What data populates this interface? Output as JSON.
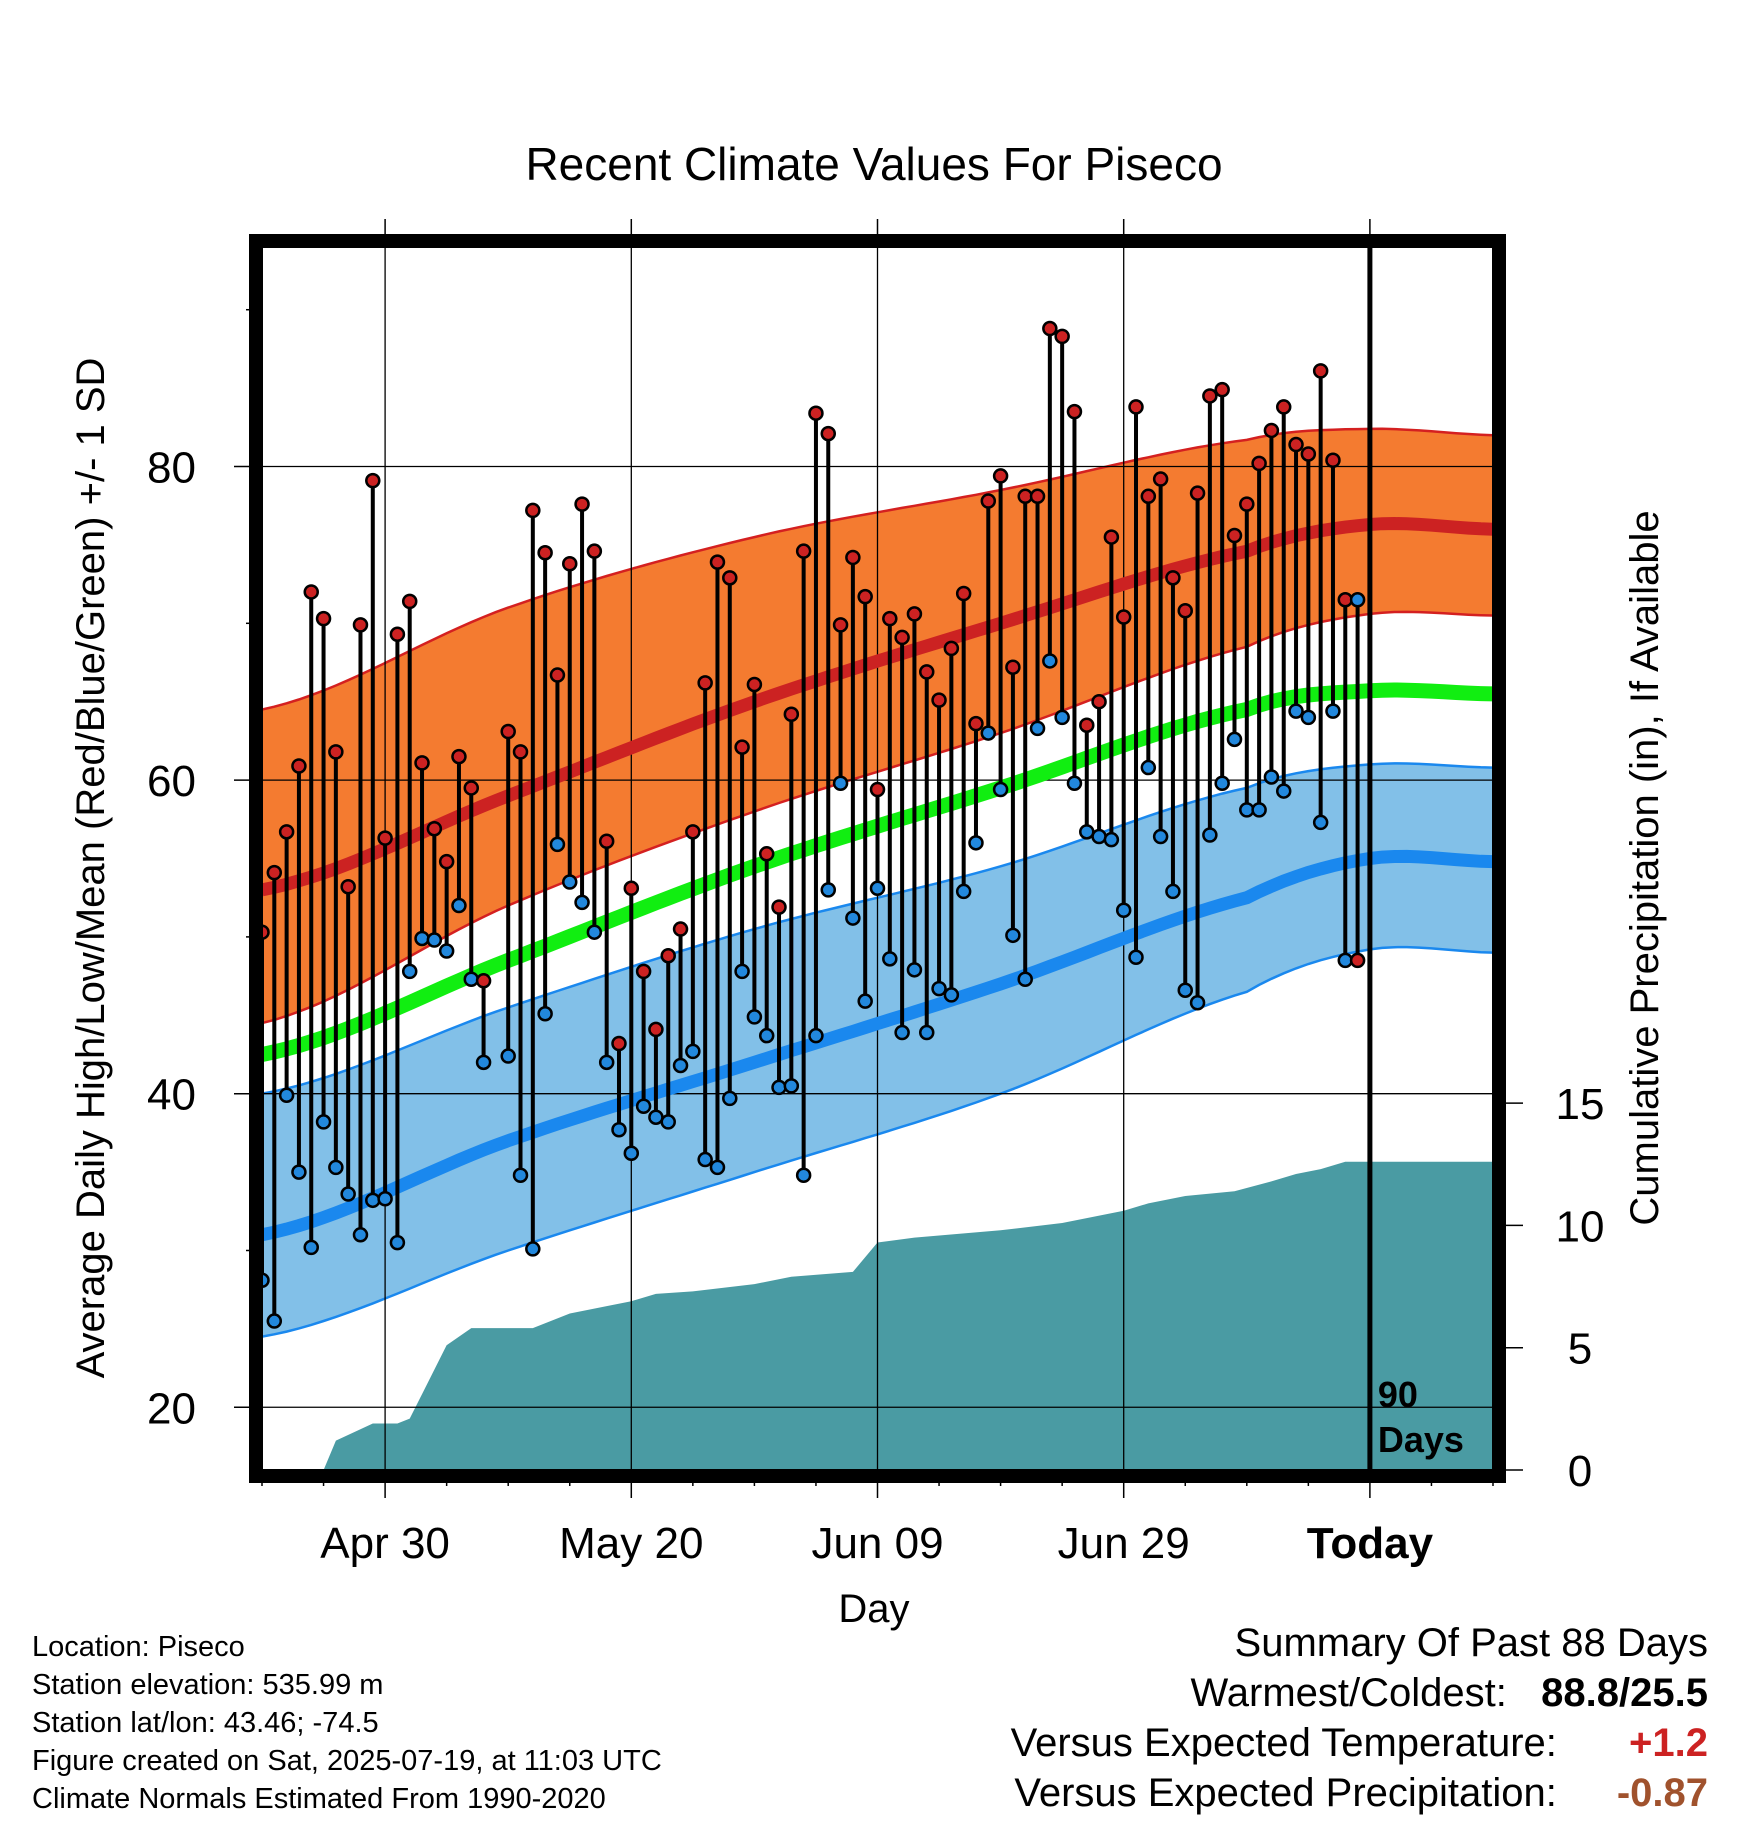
{
  "chart_data": {
    "type": "line",
    "title": "Recent Climate Values For Piseco",
    "xlabel": "Day",
    "ylabel": "Average Daily High/Low/Mean (Red/Blue/Green) +/- 1 SD",
    "y2label": "Cumulative Precipitation (in), If Available",
    "x_tick_labels": [
      "Apr 30",
      "May 20",
      "Jun 09",
      "Jun 29",
      "Today"
    ],
    "x_tick_days": [
      -80,
      -60,
      -40,
      -20,
      0
    ],
    "xlim": [
      -90,
      10
    ],
    "ylim": [
      16,
      94
    ],
    "y_ticks": [
      20,
      40,
      60,
      80
    ],
    "y2lim": [
      0,
      50
    ],
    "y2_ticks": [
      0,
      5,
      10,
      15
    ],
    "grid": true,
    "today_marker_label": "90 Days",
    "normals": {
      "days": [
        -90,
        -70,
        -50,
        -30,
        -10,
        0,
        10
      ],
      "high_mean": [
        53,
        59,
        65,
        70,
        74.6,
        76.3,
        76
      ],
      "high_upper": [
        64.5,
        71,
        75.5,
        78.5,
        81.7,
        82.4,
        82
      ],
      "high_lower": [
        44.5,
        52,
        58,
        63,
        68.5,
        70.6,
        70.5
      ],
      "mean": [
        42.5,
        48.5,
        54.5,
        59.5,
        64.5,
        65.7,
        65.5
      ],
      "low_mean": [
        31,
        37,
        42,
        47,
        52.5,
        55,
        54.8
      ],
      "low_upper": [
        40,
        45.5,
        50.5,
        54.5,
        59.5,
        61,
        60.8
      ],
      "low_lower": [
        24.5,
        30,
        35,
        40,
        46.5,
        49.2,
        49
      ]
    },
    "series": [
      {
        "name": "High",
        "color": "#cc2222",
        "x": [
          -90,
          -89,
          -88,
          -87,
          -86,
          -85,
          -84,
          -83,
          -82,
          -81,
          -80,
          -79,
          -78,
          -77,
          -76,
          -75,
          -74,
          -73,
          -72,
          -70,
          -69,
          -68,
          -67,
          -66,
          -65,
          -64,
          -63,
          -62,
          -61,
          -60,
          -59,
          -58,
          -57,
          -56,
          -55,
          -54,
          -53,
          -52,
          -51,
          -50,
          -49,
          -48,
          -47,
          -46,
          -45,
          -44,
          -43,
          -42,
          -41,
          -40,
          -39,
          -38,
          -37,
          -36,
          -35,
          -34,
          -33,
          -32,
          -31,
          -30,
          -29,
          -28,
          -27,
          -26,
          -25,
          -24,
          -23,
          -22,
          -21,
          -20,
          -19,
          -18,
          -17,
          -16,
          -15,
          -14,
          -13,
          -12,
          -11,
          -10,
          -9,
          -8,
          -7,
          -6,
          -5,
          -4,
          -3,
          -2,
          -1
        ],
        "values": [
          50.3,
          54.1,
          56.7,
          60.9,
          72,
          70.3,
          61.8,
          53.2,
          69.9,
          79.1,
          56.3,
          69.3,
          71.4,
          61.1,
          56.9,
          54.8,
          61.5,
          59.5,
          47.2,
          63.1,
          61.8,
          77.2,
          74.5,
          66.7,
          73.8,
          77.6,
          74.6,
          56.1,
          43.2,
          53.1,
          47.8,
          44.1,
          48.8,
          50.5,
          56.7,
          66.2,
          73.9,
          72.9,
          62.1,
          66.1,
          55.3,
          51.9,
          64.2,
          74.6,
          83.4,
          82.1,
          69.9,
          74.2,
          71.7,
          59.4,
          70.3,
          69.1,
          70.6,
          66.9,
          65.1,
          68.4,
          71.9,
          63.6,
          77.8,
          79.4,
          67.2,
          78.1,
          78.1,
          88.8,
          88.3,
          83.5,
          63.5,
          65,
          75.5,
          70.4,
          83.8,
          78.1,
          79.2,
          72.9,
          70.8,
          78.3,
          84.5,
          84.9,
          75.6,
          77.6,
          80.2,
          82.3,
          83.8,
          81.4,
          80.8,
          86.1,
          80.4,
          71.5,
          48.5
        ]
      },
      {
        "name": "Low",
        "color": "#2288dd",
        "x": [
          -90,
          -89,
          -88,
          -87,
          -86,
          -85,
          -84,
          -83,
          -82,
          -81,
          -80,
          -79,
          -78,
          -77,
          -76,
          -75,
          -74,
          -73,
          -72,
          -70,
          -69,
          -68,
          -67,
          -66,
          -65,
          -64,
          -63,
          -62,
          -61,
          -60,
          -59,
          -58,
          -57,
          -56,
          -55,
          -54,
          -53,
          -52,
          -51,
          -50,
          -49,
          -48,
          -47,
          -46,
          -45,
          -44,
          -43,
          -42,
          -41,
          -40,
          -39,
          -38,
          -37,
          -36,
          -35,
          -34,
          -33,
          -32,
          -31,
          -30,
          -29,
          -28,
          -27,
          -26,
          -25,
          -24,
          -23,
          -22,
          -21,
          -20,
          -19,
          -18,
          -17,
          -16,
          -15,
          -14,
          -13,
          -12,
          -11,
          -10,
          -9,
          -8,
          -7,
          -6,
          -5,
          -4,
          -3,
          -2,
          -1
        ],
        "values": [
          28.1,
          25.5,
          39.9,
          35,
          30.2,
          38.2,
          35.3,
          33.6,
          31,
          33.2,
          33.3,
          30.5,
          47.8,
          49.9,
          49.8,
          49.1,
          52,
          47.3,
          42,
          42.4,
          34.8,
          30.1,
          45.1,
          55.9,
          53.5,
          52.2,
          50.3,
          42,
          37.7,
          36.2,
          39.2,
          38.5,
          38.2,
          41.8,
          42.7,
          35.8,
          35.3,
          39.7,
          47.8,
          44.9,
          43.7,
          40.4,
          40.5,
          34.8,
          43.7,
          53,
          59.8,
          51.2,
          45.9,
          53.1,
          48.6,
          43.9,
          47.9,
          43.9,
          46.7,
          46.3,
          52.9,
          56,
          63,
          59.4,
          50.1,
          47.3,
          63.3,
          67.6,
          64,
          59.8,
          56.7,
          56.4,
          56.2,
          51.7,
          48.7,
          60.8,
          56.4,
          52.9,
          46.6,
          45.8,
          56.5,
          59.8,
          62.6,
          58.1,
          58.1,
          60.2,
          59.3,
          64.4,
          64,
          57.3,
          64.4,
          48.5,
          71.5
        ]
      },
      {
        "name": "Cumulative Precipitation",
        "color": "#4a9ba3",
        "x": [
          -90,
          -85,
          -84,
          -81,
          -79,
          -78,
          -77,
          -75,
          -73,
          -71,
          -68,
          -65,
          -62,
          -60,
          -58,
          -55,
          -50,
          -47,
          -42,
          -40,
          -37,
          -30,
          -25,
          -20,
          -18,
          -15,
          -11,
          -8,
          -6,
          -4,
          -2,
          10
        ],
        "values": [
          0,
          0,
          1.2,
          1.9,
          1.9,
          2.1,
          3.1,
          5.1,
          5.8,
          5.8,
          5.8,
          6.4,
          6.7,
          6.9,
          7.2,
          7.3,
          7.6,
          7.9,
          8.1,
          9.3,
          9.5,
          9.8,
          10.1,
          10.6,
          10.9,
          11.2,
          11.4,
          11.8,
          12.1,
          12.3,
          12.6,
          12.6
        ]
      }
    ]
  },
  "info": {
    "location": "Location: Piseco",
    "elevation": "Station elevation: 535.99 m",
    "latlon": "Station lat/lon: 43.46; -74.5",
    "created": "Figure created on Sat, 2025-07-19, at 11:03 UTC",
    "normals": "Climate Normals Estimated From 1990-2020"
  },
  "summary": {
    "heading": "Summary Of Past 88 Days",
    "warm_cold_label": "Warmest/Coldest:",
    "warm_cold_value": "88.8/25.5",
    "temp_label": "Versus Expected Temperature:",
    "temp_value": "+1.2",
    "precip_label": "Versus Expected Precipitation:",
    "precip_value": "-0.87"
  }
}
